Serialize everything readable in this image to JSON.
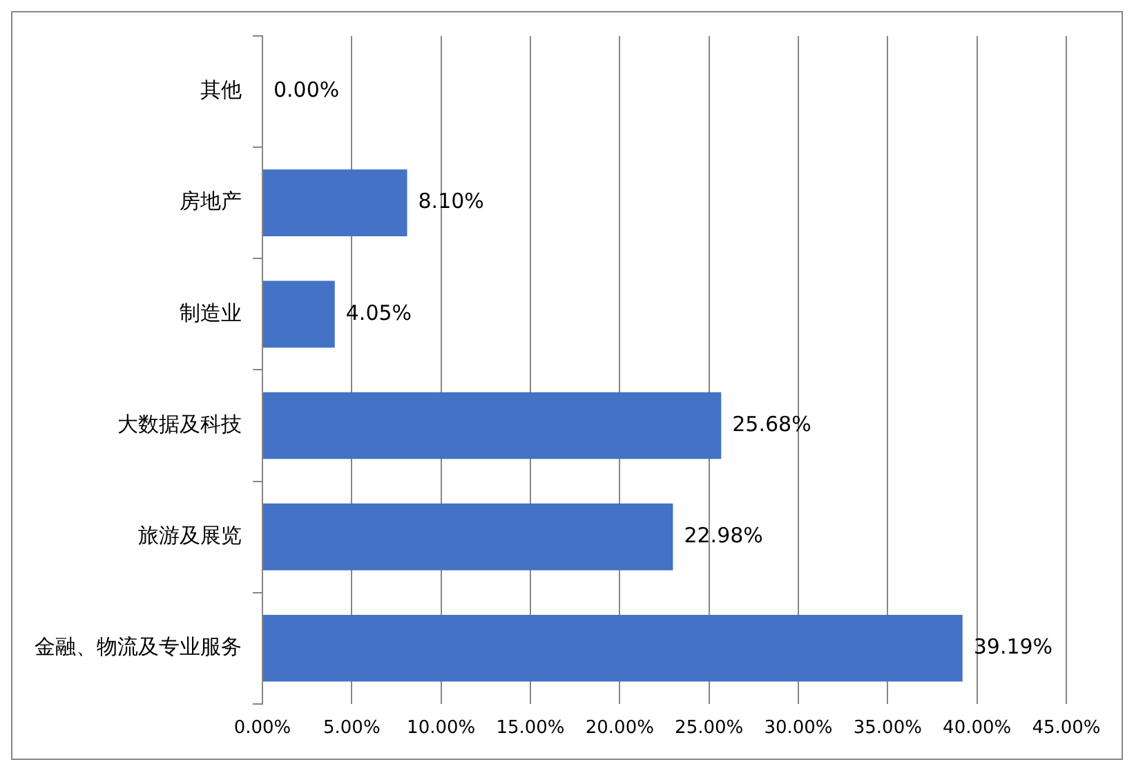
{
  "chart_data": {
    "type": "bar",
    "orientation": "horizontal",
    "categories": [
      "其他",
      "房地产",
      "制造业",
      "大数据及科技",
      "旅游及展览",
      "金融、物流及专业服务"
    ],
    "values": [
      0,
      8.1,
      4.05,
      25.68,
      22.98,
      39.19
    ],
    "value_labels": [
      "0.00%",
      "8.10%",
      "4.05%",
      "25.68%",
      "22.98%",
      "39.19%"
    ],
    "color": "#4472c4",
    "xlim": [
      0,
      45
    ],
    "xticks": [
      {
        "value": 0,
        "label": "0.00%"
      },
      {
        "value": 5,
        "label": "5.00%"
      },
      {
        "value": 10,
        "label": "10.00%"
      },
      {
        "value": 15,
        "label": "15.00%"
      },
      {
        "value": 20,
        "label": "20.00%"
      },
      {
        "value": 25,
        "label": "25.00%"
      },
      {
        "value": 30,
        "label": "30.00%"
      },
      {
        "value": 35,
        "label": "35.00%"
      },
      {
        "value": 40,
        "label": "40.00%"
      },
      {
        "value": 45,
        "label": "45.00%"
      }
    ],
    "grid": "x",
    "legend": false
  }
}
